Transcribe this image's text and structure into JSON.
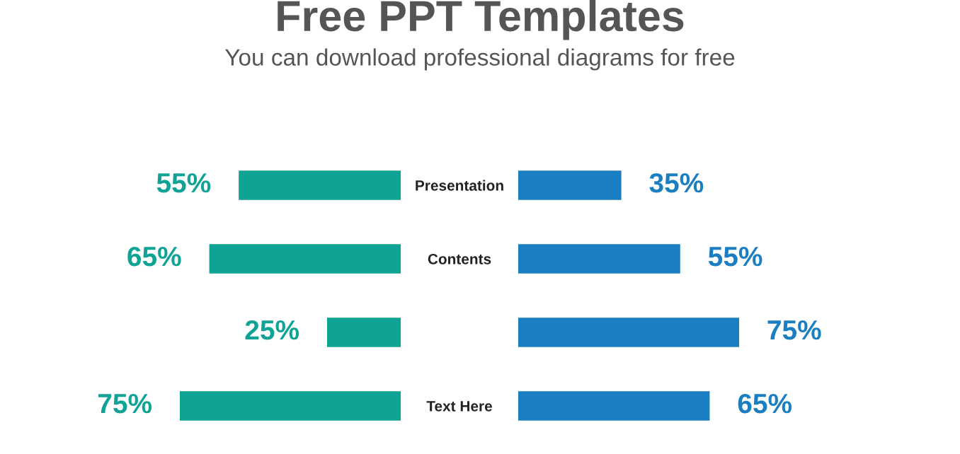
{
  "chart_data": [
    {
      "type": "bar",
      "orientation": "horizontal",
      "title": "Free PPT Templates",
      "subtitle": "You can download professional diagrams for free",
      "categories": [
        "Presentation",
        "Contents",
        null,
        "Text Here"
      ],
      "tick_labels": "y",
      "series": [
        {
          "color": "#0fa396",
          "values": [
            55,
            65,
            25,
            75
          ],
          "value_labels": [
            "55%",
            "65%",
            "25%",
            "75%"
          ]
        }
      ]
    },
    {
      "type": "bar",
      "orientation": "horizontal",
      "categories": [
        null,
        null,
        null,
        null
      ],
      "tick_labels": false,
      "series": [
        {
          "color": "#1a7fc2",
          "values": [
            35,
            55,
            75,
            65
          ],
          "value_labels": [
            "35%",
            "55%",
            "75%",
            "65%"
          ]
        }
      ]
    }
  ]
}
